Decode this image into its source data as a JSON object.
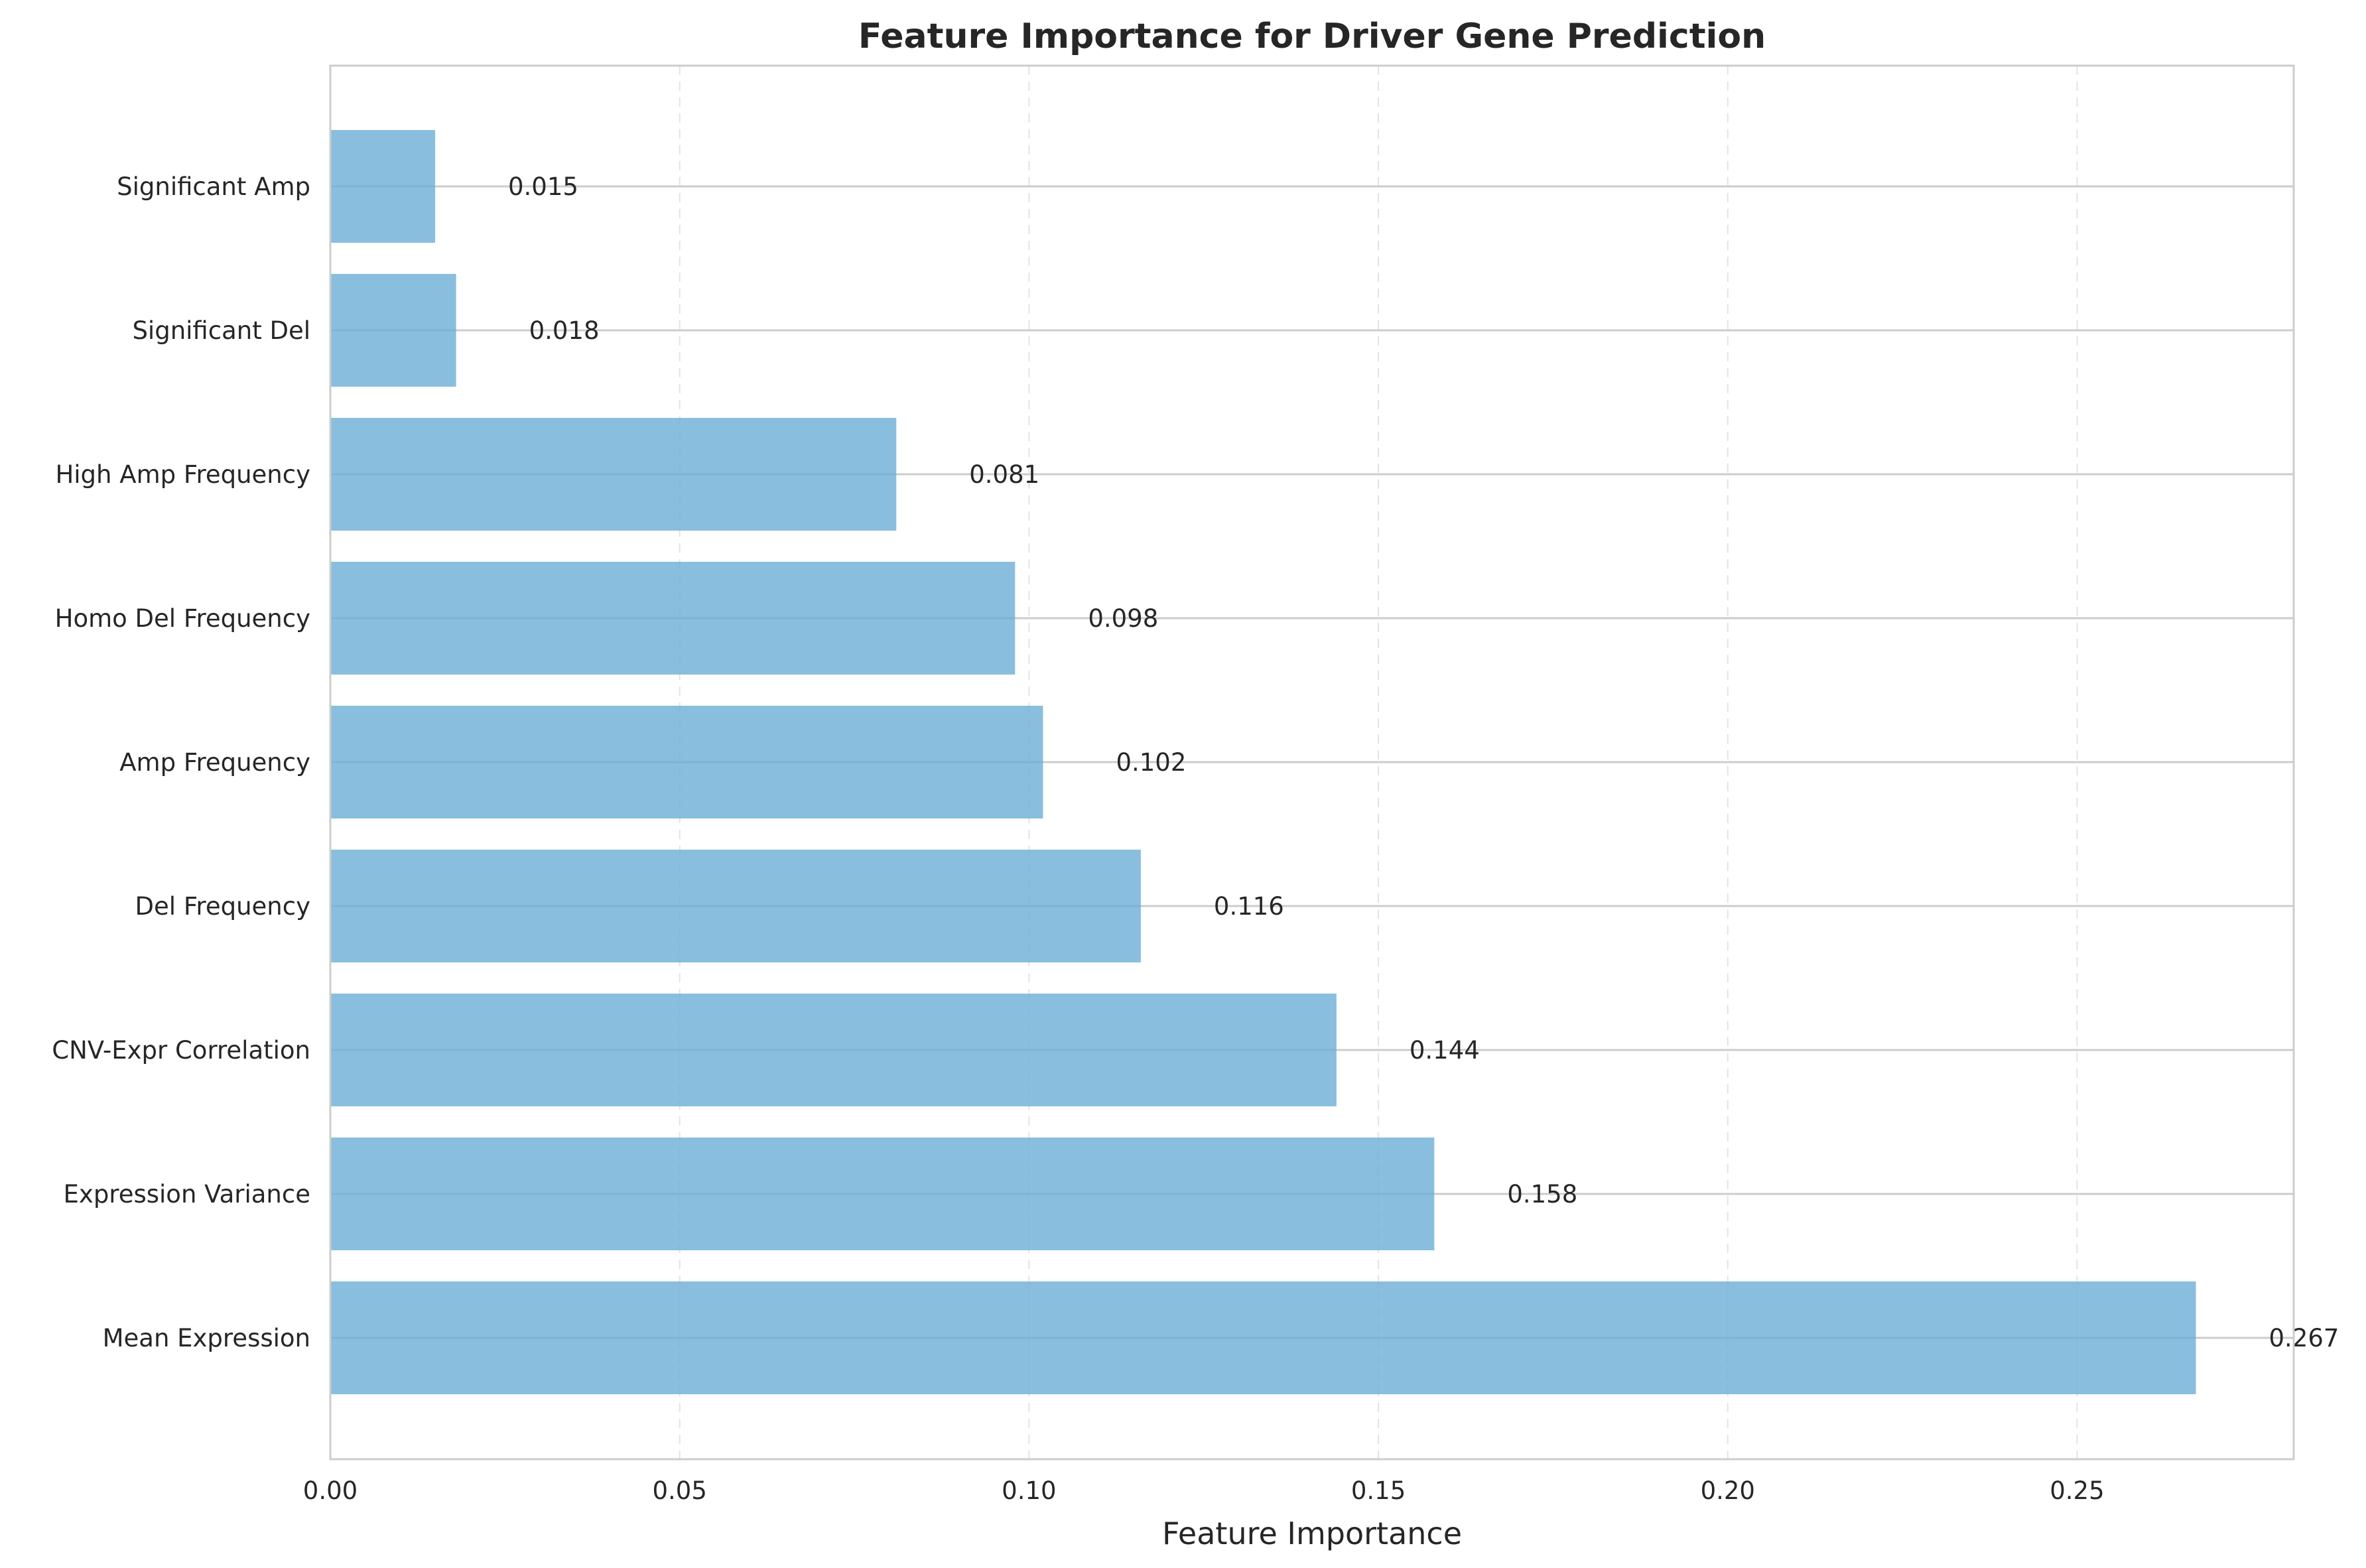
{
  "chart_data": {
    "type": "bar",
    "orientation": "horizontal",
    "title": "Feature Importance for Driver Gene Prediction",
    "xlabel": "Feature Importance",
    "ylabel": "",
    "xlim": [
      0,
      0.281
    ],
    "xticks": [
      0.0,
      0.05,
      0.1,
      0.15,
      0.2,
      0.25
    ],
    "xtick_labels": [
      "0.00",
      "0.05",
      "0.10",
      "0.15",
      "0.20",
      "0.25"
    ],
    "categories": [
      "Significant Amp",
      "Significant Del",
      "High Amp Frequency",
      "Homo Del Frequency",
      "Amp Frequency",
      "Del Frequency",
      "CNV-Expr Correlation",
      "Expression Variance",
      "Mean Expression"
    ],
    "values": [
      0.015,
      0.018,
      0.081,
      0.098,
      0.102,
      0.116,
      0.144,
      0.158,
      0.267
    ],
    "value_labels": [
      "0.015",
      "0.018",
      "0.081",
      "0.098",
      "0.102",
      "0.116",
      "0.144",
      "0.158",
      "0.267"
    ],
    "grid": true,
    "colors": {
      "bar": "#6baed6",
      "bar_opacity": 0.8
    }
  }
}
